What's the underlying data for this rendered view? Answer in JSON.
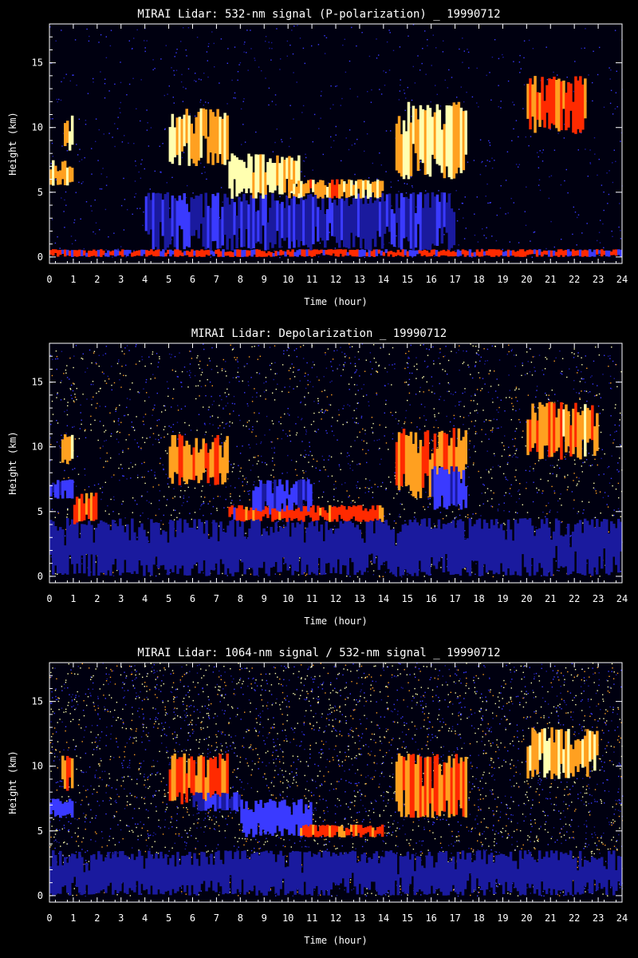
{
  "chart_data": [
    {
      "type": "heatmap",
      "title": "MIRAI Lidar: 532-nm signal (P-polarization) _ 19990712",
      "xlabel": "Time (hour)",
      "ylabel": "Height (km)",
      "xlim": [
        0,
        24
      ],
      "ylim": [
        -0.5,
        18
      ],
      "xticks": [
        "0",
        "1",
        "2",
        "3",
        "4",
        "5",
        "6",
        "7",
        "8",
        "9",
        "10",
        "11",
        "12",
        "13",
        "14",
        "15",
        "16",
        "17",
        "18",
        "19",
        "20",
        "21",
        "22",
        "23",
        "24"
      ],
      "yticks": [
        "0",
        "5",
        "10",
        "15"
      ],
      "colormap": [
        "#000010",
        "#1a1a9e",
        "#3a3aff",
        "#ff2a00",
        "#ffa020",
        "#ffffb0"
      ],
      "features": [
        {
          "t0": 0.0,
          "t1": 24.0,
          "h0": 0.0,
          "h1": 0.6,
          "level": 0.6
        },
        {
          "t0": 0.0,
          "t1": 1.0,
          "h0": 5.5,
          "h1": 7.5,
          "level": 0.9
        },
        {
          "t0": 0.6,
          "t1": 1.0,
          "h0": 8.0,
          "h1": 11.0,
          "level": 0.95
        },
        {
          "t0": 4.0,
          "t1": 17.0,
          "h0": 0.5,
          "h1": 5.0,
          "level": 0.35
        },
        {
          "t0": 5.0,
          "t1": 7.5,
          "h0": 7.0,
          "h1": 11.5,
          "level": 0.9
        },
        {
          "t0": 7.5,
          "t1": 10.5,
          "h0": 4.5,
          "h1": 8.0,
          "level": 1.0
        },
        {
          "t0": 10.0,
          "t1": 14.0,
          "h0": 4.5,
          "h1": 6.0,
          "level": 0.85
        },
        {
          "t0": 14.5,
          "t1": 17.5,
          "h0": 6.0,
          "h1": 12.0,
          "level": 0.95
        },
        {
          "t0": 20.0,
          "t1": 22.5,
          "h0": 9.5,
          "h1": 14.0,
          "level": 0.7
        }
      ]
    },
    {
      "type": "heatmap",
      "title": "MIRAI Lidar: Depolarization _ 19990712",
      "xlabel": "Time (hour)",
      "ylabel": "Height (km)",
      "xlim": [
        0,
        24
      ],
      "ylim": [
        -0.5,
        18
      ],
      "xticks": [
        "0",
        "1",
        "2",
        "3",
        "4",
        "5",
        "6",
        "7",
        "8",
        "9",
        "10",
        "11",
        "12",
        "13",
        "14",
        "15",
        "16",
        "17",
        "18",
        "19",
        "20",
        "21",
        "22",
        "23",
        "24"
      ],
      "yticks": [
        "0",
        "5",
        "10",
        "15"
      ],
      "colormap": [
        "#000010",
        "#1a1a9e",
        "#3a3aff",
        "#ff2a00",
        "#ffa020",
        "#ffffb0"
      ],
      "features": [
        {
          "t0": 0.0,
          "t1": 24.0,
          "h0": 0.0,
          "h1": 4.5,
          "level": 0.3
        },
        {
          "t0": 0.0,
          "t1": 1.0,
          "h0": 6.0,
          "h1": 7.5,
          "level": 0.4
        },
        {
          "t0": 0.5,
          "t1": 1.0,
          "h0": 8.0,
          "h1": 11.0,
          "level": 0.85
        },
        {
          "t0": 1.0,
          "t1": 2.0,
          "h0": 4.0,
          "h1": 6.5,
          "level": 0.7
        },
        {
          "t0": 5.0,
          "t1": 7.5,
          "h0": 7.0,
          "h1": 11.0,
          "level": 0.8
        },
        {
          "t0": 7.5,
          "t1": 14.0,
          "h0": 4.2,
          "h1": 5.5,
          "level": 0.65
        },
        {
          "t0": 8.5,
          "t1": 11.0,
          "h0": 5.0,
          "h1": 7.5,
          "level": 0.4
        },
        {
          "t0": 14.5,
          "t1": 17.5,
          "h0": 6.0,
          "h1": 11.5,
          "level": 0.8
        },
        {
          "t0": 16.0,
          "t1": 17.5,
          "h0": 5.0,
          "h1": 8.5,
          "level": 0.4
        },
        {
          "t0": 20.0,
          "t1": 23.0,
          "h0": 9.0,
          "h1": 13.5,
          "level": 0.8
        }
      ]
    },
    {
      "type": "heatmap",
      "title": "MIRAI Lidar: 1064-nm signal / 532-nm signal _ 19990712",
      "xlabel": "Time (hour)",
      "ylabel": "Height (km)",
      "xlim": [
        0,
        24
      ],
      "ylim": [
        -0.5,
        18
      ],
      "xticks": [
        "0",
        "1",
        "2",
        "3",
        "4",
        "5",
        "6",
        "7",
        "8",
        "9",
        "10",
        "11",
        "12",
        "13",
        "14",
        "15",
        "16",
        "17",
        "18",
        "19",
        "20",
        "21",
        "22",
        "23",
        "24"
      ],
      "yticks": [
        "0",
        "5",
        "10",
        "15"
      ],
      "colormap": [
        "#000010",
        "#1a1a9e",
        "#3a3aff",
        "#ff2a00",
        "#ffa020",
        "#ffffb0"
      ],
      "features": [
        {
          "t0": 0.0,
          "t1": 24.0,
          "h0": 0.0,
          "h1": 3.5,
          "level": 0.3
        },
        {
          "t0": 0.0,
          "t1": 1.0,
          "h0": 6.0,
          "h1": 7.5,
          "level": 0.45
        },
        {
          "t0": 0.5,
          "t1": 1.0,
          "h0": 8.0,
          "h1": 11.0,
          "level": 0.75
        },
        {
          "t0": 5.0,
          "t1": 7.5,
          "h0": 7.0,
          "h1": 11.0,
          "level": 0.7
        },
        {
          "t0": 6.0,
          "t1": 8.0,
          "h0": 6.5,
          "h1": 8.0,
          "level": 0.4
        },
        {
          "t0": 8.0,
          "t1": 11.0,
          "h0": 4.5,
          "h1": 7.5,
          "level": 0.45
        },
        {
          "t0": 10.5,
          "t1": 14.0,
          "h0": 4.5,
          "h1": 5.5,
          "level": 0.7
        },
        {
          "t0": 14.5,
          "t1": 17.5,
          "h0": 6.0,
          "h1": 11.0,
          "level": 0.75
        },
        {
          "t0": 20.0,
          "t1": 23.0,
          "h0": 9.0,
          "h1": 13.0,
          "level": 0.9
        }
      ]
    }
  ]
}
